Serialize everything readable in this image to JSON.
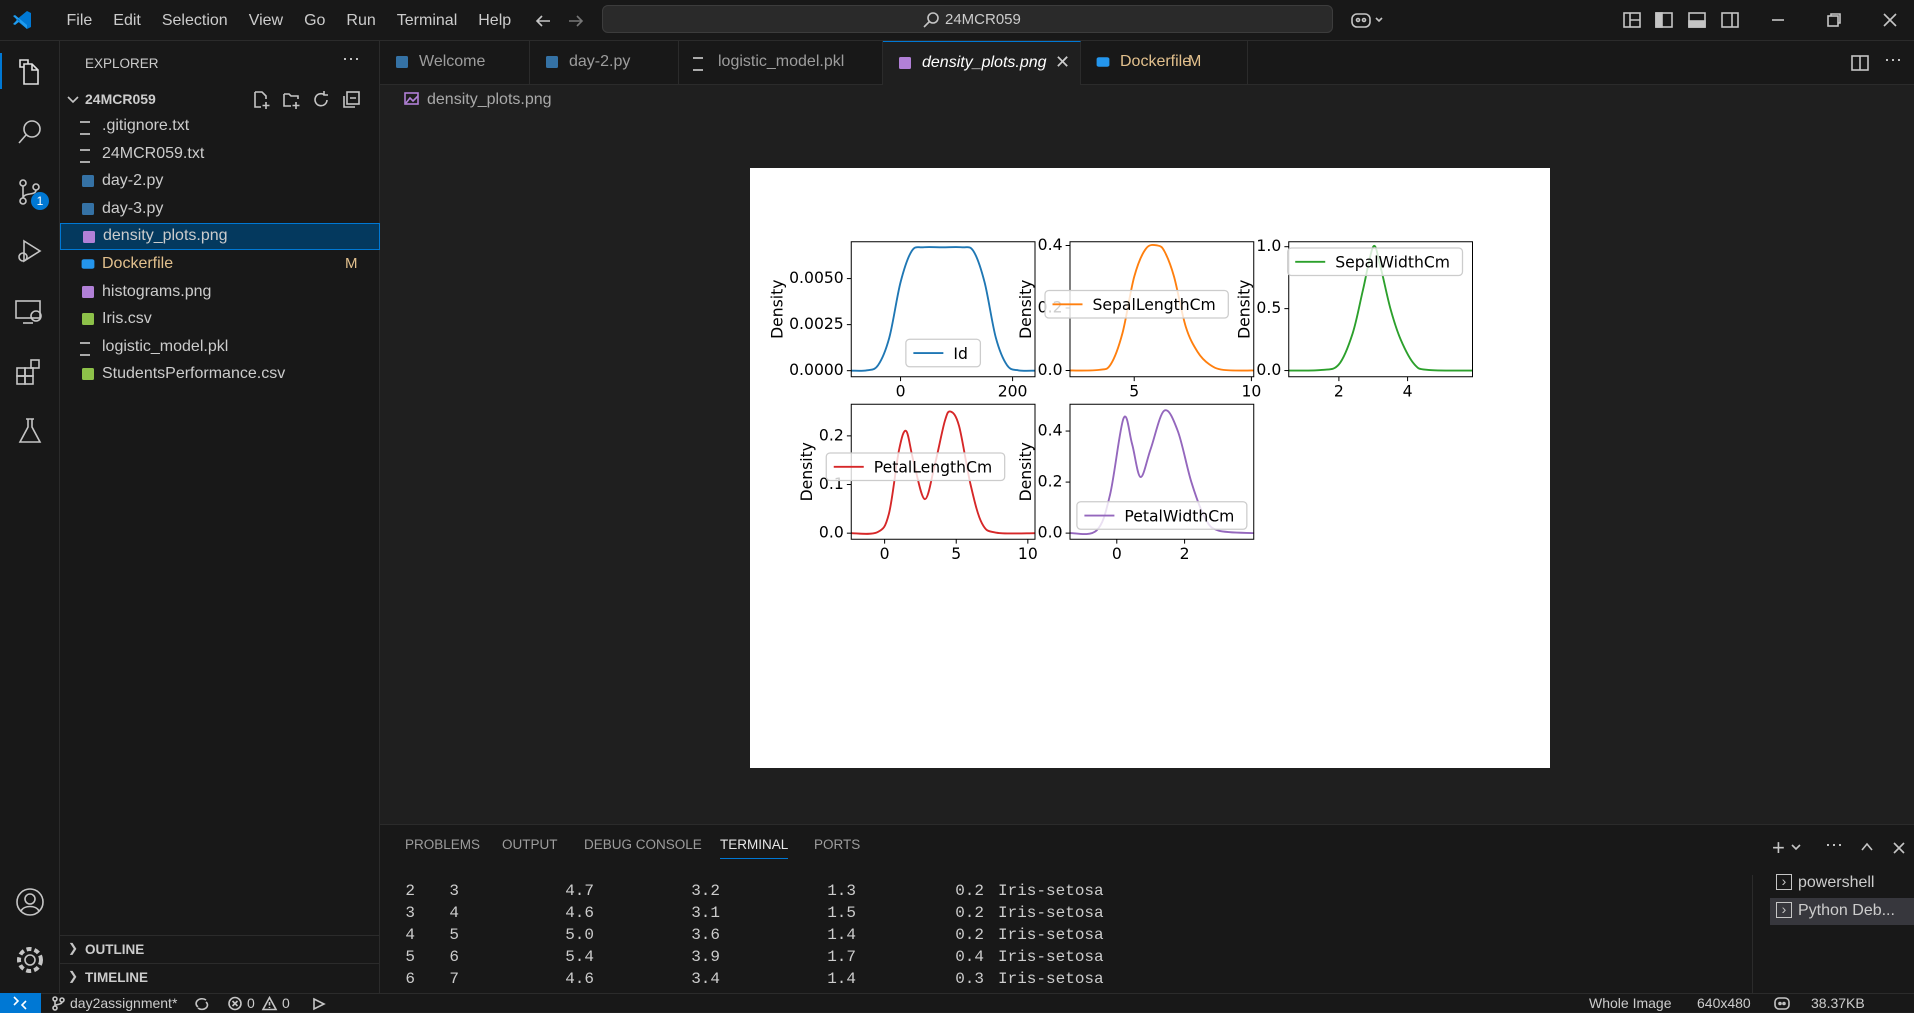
{
  "menu": [
    "File",
    "Edit",
    "Selection",
    "View",
    "Go",
    "Run",
    "Terminal",
    "Help"
  ],
  "search": "24MCR059",
  "activity_badge": "1",
  "explorer": {
    "title": "EXPLORER",
    "folder": "24MCR059",
    "files": [
      {
        "name": ".gitignore.txt"
      },
      {
        "name": "24MCR059.txt"
      },
      {
        "name": "day-2.py"
      },
      {
        "name": "day-3.py"
      },
      {
        "name": "density_plots.png",
        "selected": true
      },
      {
        "name": "Dockerfile",
        "badge": "M"
      },
      {
        "name": "histograms.png"
      },
      {
        "name": "Iris.csv"
      },
      {
        "name": "logistic_model.pkl"
      },
      {
        "name": "StudentsPerformance.csv"
      }
    ],
    "sections": [
      "OUTLINE",
      "TIMELINE"
    ]
  },
  "tabs": [
    {
      "label": "Welcome"
    },
    {
      "label": "day-2.py"
    },
    {
      "label": "logistic_model.pkl"
    },
    {
      "label": "density_plots.png",
      "active": true
    },
    {
      "label": "Dockerfile",
      "badge": "M"
    }
  ],
  "breadcrumb": "density_plots.png",
  "image": {
    "subplots": [
      {
        "name": "Id",
        "color": "#1f77b4",
        "ylabel": "Density",
        "legend": "lower center",
        "x": [
          -88,
          -60,
          -40,
          -20,
          0,
          20,
          40,
          75,
          110,
          130,
          150,
          170,
          190,
          210,
          240
        ],
        "y": [
          0,
          2e-05,
          0.0003,
          0.0018,
          0.0048,
          0.0065,
          0.0067,
          0.0067,
          0.0067,
          0.0065,
          0.0048,
          0.0018,
          0.0003,
          2e-05,
          0
        ],
        "xlim": [
          -88,
          240
        ],
        "ylim": [
          -0.00033,
          0.007
        ],
        "xticks": [
          0,
          200
        ],
        "yticks": [
          {
            "value": 0,
            "label": "0.0000"
          },
          {
            "value": 0.0025,
            "label": "0.0025"
          },
          {
            "value": 0.005,
            "label": "0.0050"
          }
        ]
      },
      {
        "name": "SepalLengthCm",
        "color": "#ff7f0e",
        "ylabel": "Density",
        "legend": "center left",
        "x": [
          2.26,
          3.5,
          4,
          4.5,
          5,
          5.5,
          6,
          6.3,
          6.7,
          7.2,
          7.7,
          8.2,
          8.8,
          10.1
        ],
        "y": [
          0,
          0.002,
          0.02,
          0.12,
          0.3,
          0.39,
          0.4,
          0.38,
          0.3,
          0.14,
          0.06,
          0.02,
          0.002,
          0
        ],
        "xlim": [
          2.26,
          10.1
        ],
        "ylim": [
          -0.02,
          0.412
        ],
        "xticks": [
          5,
          10
        ],
        "yticks": [
          {
            "value": 0,
            "label": "0.0"
          },
          0.2,
          0.4
        ]
      },
      {
        "name": "SepalWidthCm",
        "color": "#2ca02c",
        "ylabel": "Density",
        "legend": "upper right",
        "x": [
          0.54,
          1.5,
          2,
          2.4,
          2.7,
          3,
          3.2,
          3.5,
          3.8,
          4.2,
          4.6,
          5.89
        ],
        "y": [
          0,
          0.005,
          0.05,
          0.3,
          0.65,
          1,
          0.85,
          0.5,
          0.25,
          0.05,
          0.005,
          0
        ],
        "xlim": [
          0.54,
          5.89
        ],
        "ylim": [
          -0.05,
          1.04
        ],
        "xticks": [
          2,
          4
        ],
        "yticks": [
          {
            "value": 0,
            "label": "0.0"
          },
          0.5,
          {
            "value": 1,
            "label": "1.0"
          }
        ]
      },
      {
        "name": "PetalLengthCm",
        "color": "#d62728",
        "ylabel": "Density",
        "legend": "center left",
        "x": [
          -2.33,
          -0.5,
          0.3,
          1,
          1.5,
          2,
          2.8,
          3.5,
          4.2,
          4.6,
          5.2,
          6,
          6.8,
          7.8,
          10.5
        ],
        "y": [
          0,
          0.002,
          0.04,
          0.17,
          0.21,
          0.15,
          0.07,
          0.14,
          0.23,
          0.25,
          0.22,
          0.1,
          0.02,
          0.001,
          0
        ],
        "xlim": [
          -2.33,
          10.5
        ],
        "ylim": [
          -0.0125,
          0.265
        ],
        "xticks": [
          0,
          5,
          10
        ],
        "yticks": [
          {
            "value": 0,
            "label": "0.0"
          },
          0.1,
          0.2
        ]
      },
      {
        "name": "PetalWidthCm",
        "color": "#9467bd",
        "ylabel": "Density",
        "legend": "lower center",
        "x": [
          -1.38,
          -0.6,
          -0.2,
          0.2,
          0.45,
          0.7,
          1,
          1.4,
          1.8,
          2.2,
          2.6,
          3,
          4.04
        ],
        "y": [
          0,
          0.01,
          0.15,
          0.45,
          0.35,
          0.22,
          0.33,
          0.48,
          0.4,
          0.2,
          0.06,
          0.01,
          0
        ],
        "xlim": [
          -1.38,
          4.04
        ],
        "ylim": [
          -0.024,
          0.505
        ],
        "xticks": [
          0,
          2
        ],
        "yticks": [
          {
            "value": 0,
            "label": "0.0"
          },
          0.2,
          0.4
        ]
      }
    ]
  },
  "panel": {
    "tabs": [
      "PROBLEMS",
      "OUTPUT",
      "DEBUG CONSOLE",
      "TERMINAL",
      "PORTS"
    ],
    "active": 3,
    "rows": [
      [
        "2",
        "3",
        "4.7",
        "3.2",
        "1.3",
        "0.2",
        "Iris-setosa"
      ],
      [
        "3",
        "4",
        "4.6",
        "3.1",
        "1.5",
        "0.2",
        "Iris-setosa"
      ],
      [
        "4",
        "5",
        "5.0",
        "3.6",
        "1.4",
        "0.2",
        "Iris-setosa"
      ],
      [
        "5",
        "6",
        "5.4",
        "3.9",
        "1.7",
        "0.4",
        "Iris-setosa"
      ],
      [
        "6",
        "7",
        "4.6",
        "3.4",
        "1.4",
        "0.3",
        "Iris-setosa"
      ]
    ],
    "terminals": [
      "powershell",
      "Python Deb..."
    ]
  },
  "status": {
    "branch": "day2assignment*",
    "errors": "0",
    "warnings": "0",
    "items": [
      "Whole Image",
      "640x480",
      "38.37KB"
    ]
  }
}
